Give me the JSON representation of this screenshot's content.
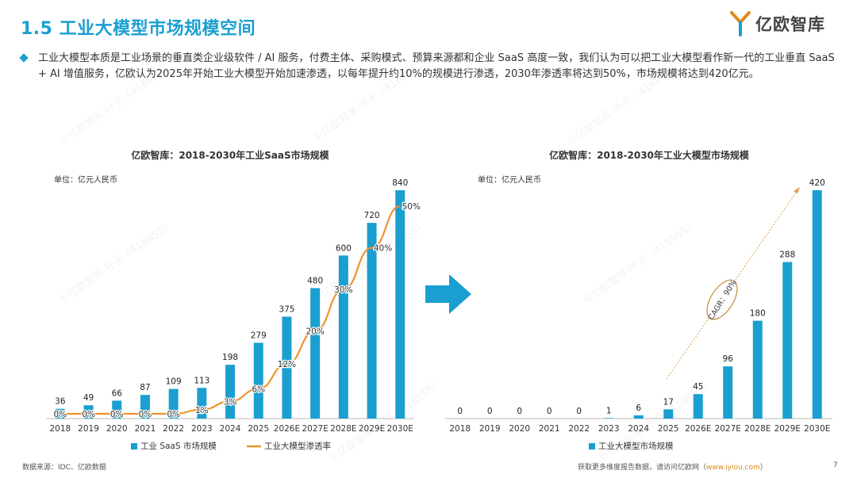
{
  "header": {
    "title": "1.5 工业大模型市场规模空间",
    "logo_text": "亿欧智库"
  },
  "summary": {
    "text": "工业大模型本质是工业场景的垂直类企业级软件 / AI 服务，付费主体、采购模式、预算来源都和企业 SaaS 高度一致，我们认为可以把工业大模型看作新一代的工业垂直 SaaS + AI 增值服务，亿欧认为2025年开始工业大模型开始加速渗透，以每年提升约10%的规模进行渗透，2030年渗透率将达到50%，市场规模将达到420亿元。"
  },
  "colors": {
    "accent": "#1a9fd0",
    "bar": "#1a9fd0",
    "line": "#f0922e",
    "title": "#1a9fd0"
  },
  "watermark": "©亿欧智库-叶子（416955）",
  "chart_data": [
    {
      "type": "bar",
      "title": "亿欧智库：2018-2030年工业SaaS市场规模",
      "unit_label": "单位：亿元人民币",
      "categories": [
        "2018",
        "2019",
        "2020",
        "2021",
        "2022",
        "2023",
        "2024",
        "2025",
        "2026E",
        "2027E",
        "2028E",
        "2029E",
        "2030E"
      ],
      "series": [
        {
          "name": "工业 SaaS 市场规模",
          "type": "bar",
          "values": [
            36,
            49,
            66,
            87,
            109,
            113,
            198,
            279,
            375,
            480,
            600,
            720,
            840
          ]
        },
        {
          "name": "工业大模型渗透率",
          "type": "line",
          "values": [
            0,
            0,
            0,
            0,
            0,
            1,
            3,
            6,
            12,
            20,
            30,
            40,
            50
          ],
          "labels": [
            "0%",
            "0%",
            "0%",
            "0%",
            "0%",
            "1%",
            "3%",
            "6%",
            "12%",
            "20%",
            "30%",
            "40%",
            "50%"
          ]
        }
      ],
      "ylim": [
        0,
        840
      ],
      "ylim_secondary": [
        0,
        55
      ],
      "legend": "bottom"
    },
    {
      "type": "bar",
      "title": "亿欧智库：2018-2030年工业大模型市场规模",
      "unit_label": "单位：亿元人民币",
      "categories": [
        "2018",
        "2019",
        "2020",
        "2021",
        "2022",
        "2023",
        "2024",
        "2025",
        "2026E",
        "2027E",
        "2028E",
        "2029E",
        "2030E"
      ],
      "series": [
        {
          "name": "工业大模型市场规模",
          "type": "bar",
          "values": [
            0,
            0,
            0,
            0,
            0,
            1,
            6,
            17,
            45,
            96,
            180,
            288,
            420
          ]
        }
      ],
      "annotation": "CAGR：90%",
      "ylim": [
        0,
        420
      ],
      "legend": "bottom"
    }
  ],
  "footer": {
    "source": "数据来源：IDC、亿欧数据",
    "more_prefix": "获取更多维度报告数据，请访问亿欧网（",
    "more_link": "www.iyiou.com",
    "more_suffix": "）",
    "page": "7"
  }
}
